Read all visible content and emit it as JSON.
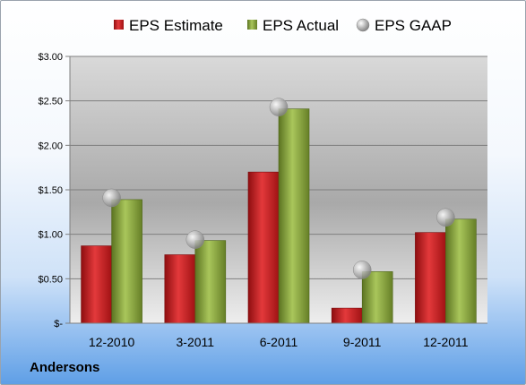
{
  "company": "Andersons",
  "chart_data": {
    "type": "bar",
    "categories": [
      "12-2010",
      "3-2011",
      "6-2011",
      "9-2011",
      "12-2011"
    ],
    "series": [
      {
        "name": "EPS Estimate",
        "kind": "bar",
        "color": "#c0181b",
        "values": [
          0.87,
          0.77,
          1.7,
          0.17,
          1.02
        ]
      },
      {
        "name": "EPS Actual",
        "kind": "bar",
        "color": "#7e9c33",
        "values": [
          1.39,
          0.93,
          2.41,
          0.58,
          1.17
        ]
      },
      {
        "name": "EPS GAAP",
        "kind": "marker",
        "color": "#9a9a9a",
        "values": [
          1.41,
          0.94,
          2.43,
          0.6,
          1.19
        ]
      }
    ],
    "ylim": [
      0,
      3.0
    ],
    "yticks": [
      {
        "value": 0,
        "label": "$-"
      },
      {
        "value": 0.5,
        "label": "$0.50"
      },
      {
        "value": 1.0,
        "label": "$1.00"
      },
      {
        "value": 1.5,
        "label": "$1.50"
      },
      {
        "value": 2.0,
        "label": "$2.00"
      },
      {
        "value": 2.5,
        "label": "$2.50"
      },
      {
        "value": 3.0,
        "label": "$3.00"
      }
    ],
    "grid": true,
    "legend": "top"
  }
}
